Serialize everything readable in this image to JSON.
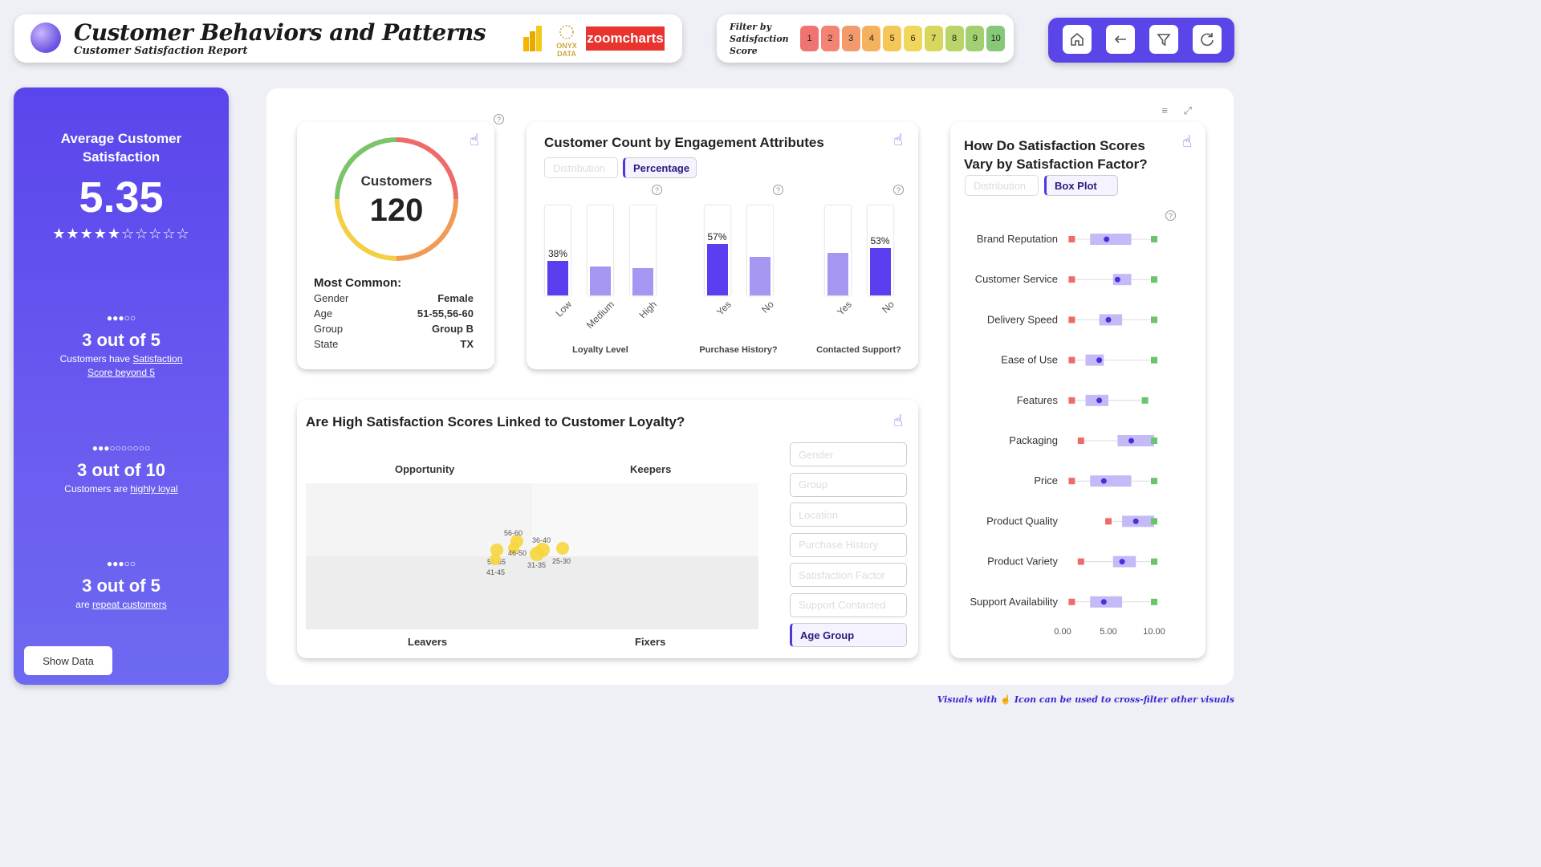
{
  "header": {
    "title": "Customer Behaviors and Patterns",
    "subtitle": "Customer Satisfaction Report",
    "onyx_text": "ONYX DATA",
    "zoomcharts_text": "zoomcharts"
  },
  "filter": {
    "label": "Filter by Satisfaction Score",
    "scores": [
      "1",
      "2",
      "3",
      "4",
      "5",
      "6",
      "7",
      "8",
      "9",
      "10"
    ],
    "colors": [
      "#f07373",
      "#f38372",
      "#f39a6c",
      "#f4b25e",
      "#f5c759",
      "#f0d65a",
      "#d9d65e",
      "#bad467",
      "#a2cf70",
      "#86c878"
    ]
  },
  "nav": {
    "home_icon": "home-icon",
    "back_icon": "back-arrow-icon",
    "filter_icon": "filter-icon",
    "reset_icon": "reset-icon"
  },
  "sidebar": {
    "avg_title": "Average Customer Satisfaction",
    "avg_value": "5.35",
    "stars": "★★★★★☆☆☆☆☆",
    "stat1": {
      "dots": "●●●○○",
      "big": "3 out of 5",
      "pre": "Customers have ",
      "link": "Satisfaction Score beyond 5"
    },
    "stat2": {
      "dots": "●●●○○○○○○○",
      "big": "3 out of 10",
      "pre": "Customers are ",
      "link": "highly loyal"
    },
    "stat3": {
      "dots": "●●●○○",
      "big": "3 out of 5",
      "pre": "are ",
      "link": "repeat customers"
    },
    "show_data": "Show Data"
  },
  "customers": {
    "label": "Customers",
    "count": "120",
    "most_common_title": "Most Common:",
    "rows": [
      {
        "k": "Gender",
        "v": "Female"
      },
      {
        "k": "Age",
        "v": "51-55,56-60"
      },
      {
        "k": "Group",
        "v": "Group B"
      },
      {
        "k": "State",
        "v": "TX"
      }
    ]
  },
  "engagement": {
    "title": "Customer Count by Engagement Attributes",
    "toggle_off": "Distribution",
    "toggle_on": "Percentage",
    "groups": [
      {
        "name": "Loyalty Level",
        "bars": [
          {
            "label": "Low",
            "pct": 38,
            "text": "38%",
            "dark": true
          },
          {
            "label": "Medium",
            "pct": 32,
            "text": "",
            "dark": false
          },
          {
            "label": "High",
            "pct": 30,
            "text": "",
            "dark": false
          }
        ]
      },
      {
        "name": "Purchase History?",
        "bars": [
          {
            "label": "Yes",
            "pct": 57,
            "text": "57%",
            "dark": true
          },
          {
            "label": "No",
            "pct": 43,
            "text": "",
            "dark": false
          }
        ]
      },
      {
        "name": "Contacted Support?",
        "bars": [
          {
            "label": "Yes",
            "pct": 47,
            "text": "",
            "dark": false
          },
          {
            "label": "No",
            "pct": 53,
            "text": "53%",
            "dark": true
          }
        ]
      }
    ]
  },
  "loyalty": {
    "title": "Are High Satisfaction Scores Linked to Customer Loyalty?",
    "quadrants": {
      "tl": "Opportunity",
      "tr": "Keepers",
      "bl": "Leavers",
      "br": "Fixers"
    },
    "dimensions": [
      "Gender",
      "Group",
      "Location",
      "Purchase History",
      "Satisfaction Factor",
      "Support Contacted",
      "Age Group"
    ],
    "active_dimension": "Age Group",
    "points": [
      {
        "label": "56-60"
      },
      {
        "label": "36-40"
      },
      {
        "label": "46-50"
      },
      {
        "label": "51-55"
      },
      {
        "label": "41-45"
      },
      {
        "label": "31-35"
      },
      {
        "label": "25-30"
      }
    ]
  },
  "satisfaction": {
    "title": "How Do Satisfaction Scores Vary by Satisfaction Factor?",
    "toggle_off": "Distribution",
    "toggle_on": "Box Plot",
    "axis_ticks": [
      "0.00",
      "5.00",
      "10.00"
    ]
  },
  "chart_data": {
    "type": "box",
    "title": "How Do Satisfaction Scores Vary by Satisfaction Factor?",
    "xlim": [
      0,
      10
    ],
    "x_ticks": [
      "0.00",
      "5.00",
      "10.00"
    ],
    "categories": [
      "Brand Reputation",
      "Customer Service",
      "Delivery Speed",
      "Ease of Use",
      "Features",
      "Packaging",
      "Price",
      "Product Quality",
      "Product Variety",
      "Support Availability"
    ],
    "series": [
      {
        "min": 1,
        "q1": 3.0,
        "median": 4.8,
        "q3": 7.5,
        "max": 10
      },
      {
        "min": 1,
        "q1": 5.5,
        "median": 6.0,
        "q3": 7.5,
        "max": 10
      },
      {
        "min": 1,
        "q1": 4.0,
        "median": 5.0,
        "q3": 6.5,
        "max": 10
      },
      {
        "min": 1,
        "q1": 2.5,
        "median": 4.0,
        "q3": 4.5,
        "max": 10
      },
      {
        "min": 1,
        "q1": 2.5,
        "median": 4.0,
        "q3": 5.0,
        "max": 9
      },
      {
        "min": 2,
        "q1": 6.0,
        "median": 7.5,
        "q3": 10,
        "max": 10
      },
      {
        "min": 1,
        "q1": 3.0,
        "median": 4.5,
        "q3": 7.5,
        "max": 10
      },
      {
        "min": 5,
        "q1": 6.5,
        "median": 8.0,
        "q3": 10,
        "max": 10
      },
      {
        "min": 2,
        "q1": 5.5,
        "median": 6.5,
        "q3": 8.0,
        "max": 10
      },
      {
        "min": 1,
        "q1": 3.0,
        "median": 4.5,
        "q3": 6.5,
        "max": 10
      }
    ]
  },
  "footer": {
    "pre": "Visuals with",
    "post": "Icon can be used to cross-filter other visuals"
  }
}
